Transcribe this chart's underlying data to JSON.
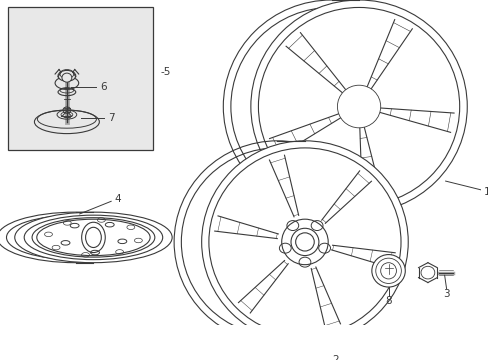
{
  "bg_color": "#ffffff",
  "line_color": "#3a3a3a",
  "box_bg": "#e8e8e8",
  "figsize": [
    4.89,
    3.6
  ],
  "dpi": 100
}
